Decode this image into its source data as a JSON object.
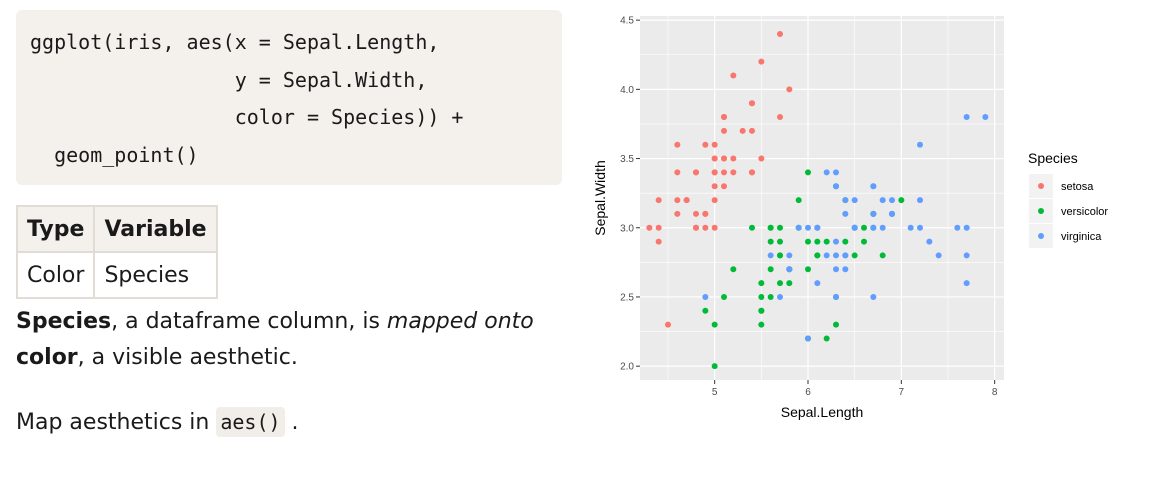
{
  "code": {
    "lines": [
      "ggplot(iris, aes(x = Sepal.Length,",
      "                 y = Sepal.Width,",
      "                 color = Species)) +",
      "  geom_point()"
    ]
  },
  "table": {
    "headers": [
      "Type",
      "Variable"
    ],
    "rows": [
      [
        "Color",
        "Species"
      ]
    ]
  },
  "text": {
    "p1_species": "Species",
    "p1_mid": ", a dataframe column, is ",
    "p1_em": "mapped onto",
    "p1_color": "color",
    "p1_end": ", a visible aesthetic.",
    "p2_start": "Map aesthetics in ",
    "p2_code": "aes()",
    "p2_end": " ."
  },
  "chart_data": {
    "type": "scatter",
    "xlabel": "Sepal.Length",
    "ylabel": "Sepal.Width",
    "xlim": [
      4.2,
      8.1
    ],
    "ylim": [
      1.9,
      4.53
    ],
    "xticks": [
      5,
      6,
      7,
      8
    ],
    "yticks": [
      2.0,
      2.5,
      3.0,
      3.5,
      4.0,
      4.5
    ],
    "ytick_labels": [
      "2.0",
      "2.5",
      "3.0",
      "3.5",
      "4.0",
      "4.5"
    ],
    "grid": true,
    "legend": {
      "title": "Species",
      "position": "right",
      "entries": [
        "setosa",
        "versicolor",
        "virginica"
      ]
    },
    "colors": {
      "setosa": "#f8766d",
      "versicolor": "#00ba38",
      "virginica": "#619cff",
      "panel": "#ebebeb"
    },
    "series": [
      {
        "name": "setosa",
        "points": [
          [
            5.1,
            3.5
          ],
          [
            4.9,
            3.0
          ],
          [
            4.7,
            3.2
          ],
          [
            4.6,
            3.1
          ],
          [
            5.0,
            3.6
          ],
          [
            5.4,
            3.9
          ],
          [
            4.6,
            3.4
          ],
          [
            5.0,
            3.4
          ],
          [
            4.4,
            2.9
          ],
          [
            4.9,
            3.1
          ],
          [
            5.4,
            3.7
          ],
          [
            4.8,
            3.4
          ],
          [
            4.8,
            3.0
          ],
          [
            4.3,
            3.0
          ],
          [
            5.8,
            4.0
          ],
          [
            5.7,
            4.4
          ],
          [
            5.4,
            3.9
          ],
          [
            5.1,
            3.5
          ],
          [
            5.7,
            3.8
          ],
          [
            5.1,
            3.8
          ],
          [
            5.4,
            3.4
          ],
          [
            5.1,
            3.7
          ],
          [
            4.6,
            3.6
          ],
          [
            5.1,
            3.3
          ],
          [
            4.8,
            3.4
          ],
          [
            5.0,
            3.0
          ],
          [
            5.0,
            3.4
          ],
          [
            5.2,
            3.5
          ],
          [
            5.2,
            3.4
          ],
          [
            4.7,
            3.2
          ],
          [
            4.8,
            3.1
          ],
          [
            5.4,
            3.4
          ],
          [
            5.2,
            4.1
          ],
          [
            5.5,
            4.2
          ],
          [
            4.9,
            3.1
          ],
          [
            5.0,
            3.2
          ],
          [
            5.5,
            3.5
          ],
          [
            4.9,
            3.6
          ],
          [
            4.4,
            3.0
          ],
          [
            5.1,
            3.4
          ],
          [
            5.0,
            3.5
          ],
          [
            4.5,
            2.3
          ],
          [
            4.4,
            3.2
          ],
          [
            5.0,
            3.5
          ],
          [
            5.1,
            3.8
          ],
          [
            4.8,
            3.0
          ],
          [
            5.1,
            3.8
          ],
          [
            4.6,
            3.2
          ],
          [
            5.3,
            3.7
          ],
          [
            5.0,
            3.3
          ]
        ]
      },
      {
        "name": "versicolor",
        "points": [
          [
            7.0,
            3.2
          ],
          [
            6.4,
            3.2
          ],
          [
            6.9,
            3.1
          ],
          [
            5.5,
            2.3
          ],
          [
            6.5,
            2.8
          ],
          [
            5.7,
            2.8
          ],
          [
            6.3,
            3.3
          ],
          [
            4.9,
            2.4
          ],
          [
            6.6,
            2.9
          ],
          [
            5.2,
            2.7
          ],
          [
            5.0,
            2.0
          ],
          [
            5.9,
            3.0
          ],
          [
            6.0,
            2.2
          ],
          [
            6.1,
            2.9
          ],
          [
            5.6,
            2.9
          ],
          [
            6.7,
            3.1
          ],
          [
            5.6,
            3.0
          ],
          [
            5.8,
            2.7
          ],
          [
            6.2,
            2.2
          ],
          [
            5.6,
            2.5
          ],
          [
            5.9,
            3.2
          ],
          [
            6.1,
            2.8
          ],
          [
            6.3,
            2.5
          ],
          [
            6.1,
            2.8
          ],
          [
            6.4,
            2.9
          ],
          [
            6.6,
            3.0
          ],
          [
            6.8,
            2.8
          ],
          [
            6.7,
            3.0
          ],
          [
            6.0,
            2.9
          ],
          [
            5.7,
            2.6
          ],
          [
            5.5,
            2.4
          ],
          [
            5.5,
            2.4
          ],
          [
            5.8,
            2.7
          ],
          [
            6.0,
            2.7
          ],
          [
            5.4,
            3.0
          ],
          [
            6.0,
            3.4
          ],
          [
            6.7,
            3.1
          ],
          [
            6.3,
            2.3
          ],
          [
            5.6,
            3.0
          ],
          [
            5.5,
            2.5
          ],
          [
            5.5,
            2.6
          ],
          [
            6.1,
            3.0
          ],
          [
            5.8,
            2.6
          ],
          [
            5.0,
            2.3
          ],
          [
            5.6,
            2.7
          ],
          [
            5.7,
            3.0
          ],
          [
            5.7,
            2.9
          ],
          [
            6.2,
            2.9
          ],
          [
            5.1,
            2.5
          ],
          [
            5.7,
            2.8
          ]
        ]
      },
      {
        "name": "virginica",
        "points": [
          [
            6.3,
            3.3
          ],
          [
            5.8,
            2.7
          ],
          [
            7.1,
            3.0
          ],
          [
            6.3,
            2.9
          ],
          [
            6.5,
            3.0
          ],
          [
            7.6,
            3.0
          ],
          [
            4.9,
            2.5
          ],
          [
            7.3,
            2.9
          ],
          [
            6.7,
            2.5
          ],
          [
            7.2,
            3.6
          ],
          [
            6.5,
            3.2
          ],
          [
            6.4,
            2.7
          ],
          [
            6.8,
            3.0
          ],
          [
            5.7,
            2.5
          ],
          [
            5.8,
            2.8
          ],
          [
            6.4,
            3.2
          ],
          [
            6.5,
            3.0
          ],
          [
            7.7,
            3.8
          ],
          [
            7.7,
            2.6
          ],
          [
            6.0,
            2.2
          ],
          [
            6.9,
            3.2
          ],
          [
            5.6,
            2.8
          ],
          [
            7.7,
            2.8
          ],
          [
            6.3,
            2.7
          ],
          [
            6.7,
            3.3
          ],
          [
            7.2,
            3.2
          ],
          [
            6.2,
            2.8
          ],
          [
            6.1,
            3.0
          ],
          [
            6.4,
            2.8
          ],
          [
            7.2,
            3.0
          ],
          [
            7.4,
            2.8
          ],
          [
            7.9,
            3.8
          ],
          [
            6.4,
            2.8
          ],
          [
            6.3,
            2.8
          ],
          [
            6.1,
            2.6
          ],
          [
            7.7,
            3.0
          ],
          [
            6.3,
            3.4
          ],
          [
            6.4,
            3.1
          ],
          [
            6.0,
            3.0
          ],
          [
            6.9,
            3.1
          ],
          [
            6.7,
            3.1
          ],
          [
            6.9,
            3.1
          ],
          [
            5.8,
            2.7
          ],
          [
            6.8,
            3.2
          ],
          [
            6.7,
            3.3
          ],
          [
            6.7,
            3.0
          ],
          [
            6.3,
            2.5
          ],
          [
            6.5,
            3.0
          ],
          [
            6.2,
            3.4
          ],
          [
            5.9,
            3.0
          ]
        ]
      }
    ]
  }
}
